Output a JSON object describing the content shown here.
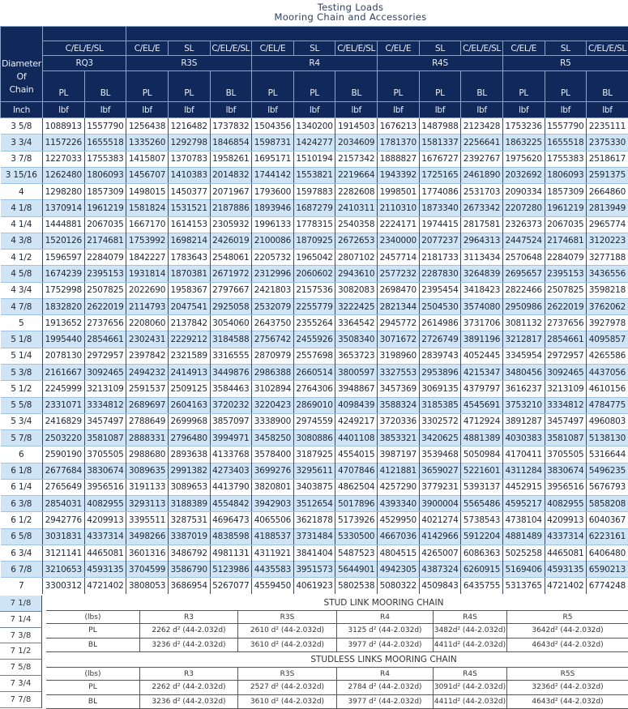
{
  "title": {
    "line1": "Testing Loads",
    "line2": "Mooring Chain and Accessories"
  },
  "header": {
    "diameter_label": [
      "Diameter",
      "Of",
      "Chain"
    ],
    "unit_inch": "Inch",
    "unit_lbf": "lbf",
    "types": [
      "C/EL/E/SL",
      "C/EL/E",
      "SL",
      "C/EL/E/SL",
      "C/EL/E",
      "SL",
      "C/EL/E/SL",
      "C/EL/E",
      "SL",
      "C/EL/E/SL",
      "C/EL/E",
      "SL",
      "C/EL/E/SL"
    ],
    "grades": [
      {
        "label": "RQ3",
        "span": 2
      },
      {
        "label": "R3S",
        "span": 3
      },
      {
        "label": "R4",
        "span": 3
      },
      {
        "label": "R4S",
        "span": 3
      },
      {
        "label": "R5",
        "span": 3
      }
    ],
    "loads": [
      "PL",
      "BL",
      "PL",
      "PL",
      "BL",
      "PL",
      "PL",
      "BL",
      "PL",
      "PL",
      "BL",
      "PL",
      "PL",
      "BL"
    ]
  },
  "rows": [
    {
      "d": "3 5/8",
      "v": [
        "1088913",
        "1557790",
        "1256438",
        "1216482",
        "1737832",
        "1504356",
        "1340200",
        "1914503",
        "1676213",
        "1487988",
        "2123428",
        "1753236",
        "1557790",
        "2235111"
      ]
    },
    {
      "d": "3 3/4",
      "v": [
        "1157226",
        "1655518",
        "1335260",
        "1292798",
        "1846854",
        "1598731",
        "1424277",
        "2034609",
        "1781370",
        "1581337",
        "2256641",
        "1863225",
        "1655518",
        "2375330"
      ]
    },
    {
      "d": "3 7/8",
      "v": [
        "1227033",
        "1755383",
        "1415807",
        "1370783",
        "1958261",
        "1695171",
        "1510194",
        "2157342",
        "1888827",
        "1676727",
        "2392767",
        "1975620",
        "1755383",
        "2518617"
      ]
    },
    {
      "d": "3 15/16",
      "v": [
        "1262480",
        "1806093",
        "1456707",
        "1410383",
        "2014832",
        "1744142",
        "1553821",
        "2219664",
        "1943392",
        "1725165",
        "2461890",
        "2032692",
        "1806093",
        "2591375"
      ]
    },
    {
      "d": "4",
      "v": [
        "1298280",
        "1857309",
        "1498015",
        "1450377",
        "2071967",
        "1793600",
        "1597883",
        "2282608",
        "1998501",
        "1774086",
        "2531703",
        "2090334",
        "1857309",
        "2664860"
      ]
    },
    {
      "d": "4 1/8",
      "v": [
        "1370914",
        "1961219",
        "1581824",
        "1531521",
        "2187886",
        "1893946",
        "1687279",
        "2410311",
        "2110310",
        "1873340",
        "2673342",
        "2207280",
        "1961219",
        "2813949"
      ]
    },
    {
      "d": "4 1/4",
      "v": [
        "1444881",
        "2067035",
        "1667170",
        "1614153",
        "2305932",
        "1996133",
        "1778315",
        "2540358",
        "2224171",
        "1974415",
        "2817581",
        "2326373",
        "2067035",
        "2965774"
      ]
    },
    {
      "d": "4 3/8",
      "v": [
        "1520126",
        "2174681",
        "1753992",
        "1698214",
        "2426019",
        "2100086",
        "1870925",
        "2672653",
        "2340000",
        "2077237",
        "2964313",
        "2447524",
        "2174681",
        "3120223"
      ]
    },
    {
      "d": "4 1/2",
      "v": [
        "1596597",
        "2284079",
        "1842227",
        "1783643",
        "2548061",
        "2205732",
        "1965042",
        "2807102",
        "2457714",
        "2181733",
        "3113434",
        "2570648",
        "2284079",
        "3277188"
      ]
    },
    {
      "d": "4 5/8",
      "v": [
        "1674239",
        "2395153",
        "1931814",
        "1870381",
        "2671972",
        "2312996",
        "2060602",
        "2943610",
        "2577232",
        "2287830",
        "3264839",
        "2695657",
        "2395153",
        "3436556"
      ]
    },
    {
      "d": "4 3/4",
      "v": [
        "1752998",
        "2507825",
        "2022690",
        "1958367",
        "2797667",
        "2421803",
        "2157536",
        "3082083",
        "2698470",
        "2395454",
        "3418423",
        "2822466",
        "2507825",
        "3598218"
      ]
    },
    {
      "d": "4 7/8",
      "v": [
        "1832820",
        "2622019",
        "2114793",
        "2047541",
        "2925058",
        "2532079",
        "2255779",
        "3222425",
        "2821344",
        "2504530",
        "3574080",
        "2950986",
        "2622019",
        "3762062"
      ]
    },
    {
      "d": "5",
      "v": [
        "1913652",
        "2737656",
        "2208060",
        "2137842",
        "3054060",
        "2643750",
        "2355264",
        "3364542",
        "2945772",
        "2614986",
        "3731706",
        "3081132",
        "2737656",
        "3927978"
      ]
    },
    {
      "d": "5 1/8",
      "v": [
        "1995440",
        "2854661",
        "2302431",
        "2229212",
        "3184588",
        "2756742",
        "2455926",
        "3508340",
        "3071672",
        "2726749",
        "3891196",
        "3212817",
        "2854661",
        "4095857"
      ]
    },
    {
      "d": "5 1/4",
      "v": [
        "2078130",
        "2972957",
        "2397842",
        "2321589",
        "3316555",
        "2870979",
        "2557698",
        "3653723",
        "3198960",
        "2839743",
        "4052445",
        "3345954",
        "2972957",
        "4265586"
      ]
    },
    {
      "d": "5 3/8",
      "v": [
        "2161667",
        "3092465",
        "2494232",
        "2414913",
        "3449876",
        "2986388",
        "2660514",
        "3800597",
        "3327553",
        "2953896",
        "4215347",
        "3480456",
        "3092465",
        "4437056"
      ]
    },
    {
      "d": "5 1/2",
      "v": [
        "2245999",
        "3213109",
        "2591537",
        "2509125",
        "3584463",
        "3102894",
        "2764306",
        "3948867",
        "3457369",
        "3069135",
        "4379797",
        "3616237",
        "3213109",
        "4610156"
      ]
    },
    {
      "d": "5 5/8",
      "v": [
        "2331071",
        "3334812",
        "2689697",
        "2604163",
        "3720232",
        "3220423",
        "2869010",
        "4098439",
        "3588324",
        "3185385",
        "4545691",
        "3753210",
        "3334812",
        "4784775"
      ]
    },
    {
      "d": "5 3/4",
      "v": [
        "2416829",
        "3457497",
        "2788649",
        "2699968",
        "3857097",
        "3338900",
        "2974559",
        "4249217",
        "3720336",
        "3302572",
        "4712924",
        "3891287",
        "3457497",
        "4960803"
      ]
    },
    {
      "d": "5 7/8",
      "v": [
        "2503220",
        "3581087",
        "2888331",
        "2796480",
        "3994971",
        "3458250",
        "3080886",
        "4401108",
        "3853321",
        "3420625",
        "4881389",
        "4030383",
        "3581087",
        "5138130"
      ]
    },
    {
      "d": "6",
      "v": [
        "2590190",
        "3705505",
        "2988680",
        "2893638",
        "4133768",
        "3578400",
        "3187925",
        "4554015",
        "3987197",
        "3539468",
        "5050984",
        "4170411",
        "3705505",
        "5316644"
      ]
    },
    {
      "d": "6 1/8",
      "v": [
        "2677684",
        "3830674",
        "3089635",
        "2991382",
        "4273403",
        "3699276",
        "3295611",
        "4707846",
        "4121881",
        "3659027",
        "5221601",
        "4311284",
        "3830674",
        "5496235"
      ]
    },
    {
      "d": "6 1/4",
      "v": [
        "2765649",
        "3956516",
        "3191133",
        "3089653",
        "4413790",
        "3820801",
        "3403875",
        "4862504",
        "4257290",
        "3779231",
        "5393137",
        "4452915",
        "3956516",
        "5676793"
      ]
    },
    {
      "d": "6 3/8",
      "v": [
        "2854031",
        "4082955",
        "3293113",
        "3188389",
        "4554842",
        "3942903",
        "3512654",
        "5017896",
        "4393340",
        "3900004",
        "5565486",
        "4595217",
        "4082955",
        "5858208"
      ]
    },
    {
      "d": "6 1/2",
      "v": [
        "2942776",
        "4209913",
        "3395511",
        "3287531",
        "4696473",
        "4065506",
        "3621878",
        "5173926",
        "4529950",
        "4021274",
        "5738543",
        "4738104",
        "4209913",
        "6040367"
      ]
    },
    {
      "d": "6 5/8",
      "v": [
        "3031831",
        "4337314",
        "3498266",
        "3387019",
        "4838598",
        "4188537",
        "3731484",
        "5330500",
        "4667036",
        "4142966",
        "5912204",
        "4881489",
        "4337314",
        "6223161"
      ]
    },
    {
      "d": "6 3/4",
      "v": [
        "3121141",
        "4465081",
        "3601316",
        "3486792",
        "4981131",
        "4311921",
        "3841404",
        "5487523",
        "4804515",
        "4265007",
        "6086363",
        "5025258",
        "4465081",
        "6406480"
      ]
    },
    {
      "d": "6 7/8",
      "v": [
        "3210653",
        "4593135",
        "3704599",
        "3586790",
        "5123986",
        "4435583",
        "3951573",
        "5644901",
        "4942305",
        "4387324",
        "6260915",
        "5169406",
        "4593135",
        "6590213"
      ]
    },
    {
      "d": "7",
      "v": [
        "3300312",
        "4721402",
        "3808053",
        "3686954",
        "5267077",
        "4559450",
        "4061923",
        "5802538",
        "5080322",
        "4509843",
        "6435755",
        "5313765",
        "4721402",
        "6774248"
      ]
    }
  ],
  "extra_diameters": [
    "7 1/8",
    "7 1/4",
    "7 3/8",
    "7 1/2",
    "7 5/8",
    "7 3/4",
    "7 7/8"
  ],
  "stud_link": {
    "title": "STUD LINK MOORING CHAIN",
    "header": [
      "(lbs)",
      "R3",
      "R3S",
      "R4",
      "R4S",
      "R5"
    ],
    "rows": [
      [
        "PL",
        "2262 d² (44-2.032d)",
        "2610 d² (44-2.032d)",
        "3125 d² (44-2.032d)",
        "3482d² (44-2.032d)",
        "3642d² (44-2.032d)"
      ],
      [
        "BL",
        "3236 d² (44-2.032d)",
        "3610 d² (44-2.032d)",
        "3977 d² (44-2.032d)",
        "4411d² (44-2.032d)",
        "4643d² (44-2.032d)"
      ]
    ]
  },
  "studless": {
    "title": "STUDLESS LINKS MOORING CHAIN",
    "header": [
      "(lbs)",
      "R3",
      "R3S",
      "R4",
      "R4S",
      "R5S"
    ],
    "rows": [
      [
        "PL",
        "2262 d² (44-2.032d)",
        "2527 d² (44-2.032d)",
        "2784 d² (44-2.032d)",
        "3091d² (44-2.032d)",
        "3236d² (44-2.032d)"
      ],
      [
        "BL",
        "3236 d² (44-2.032d)",
        "3610 d² (44-2.032d)",
        "3977 d² (44-2.032d)",
        "4411d² (44-2.032d)",
        "4643d² (44-2.032d)"
      ]
    ]
  }
}
